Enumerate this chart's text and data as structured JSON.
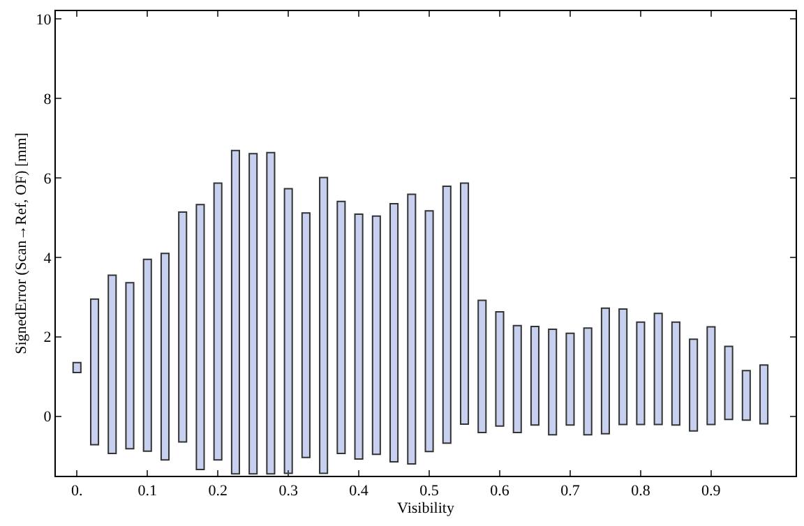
{
  "chart_data": {
    "type": "bar",
    "xlabel": "Visibility",
    "ylabel": "SignedError (Scan→Ref, OF) [mm]",
    "x": [
      0,
      0.025,
      0.05,
      0.075,
      0.1,
      0.125,
      0.15,
      0.175,
      0.2,
      0.225,
      0.25,
      0.275,
      0.3,
      0.325,
      0.35,
      0.375,
      0.4,
      0.425,
      0.45,
      0.475,
      0.5,
      0.525,
      0.55,
      0.575,
      0.6,
      0.625,
      0.65,
      0.675,
      0.7,
      0.725,
      0.75,
      0.775,
      0.8,
      0.825,
      0.85,
      0.875,
      0.9,
      0.925,
      0.95,
      0.975
    ],
    "base": [
      1.1,
      -0.72,
      -0.94,
      -0.82,
      -0.88,
      -1.1,
      -0.65,
      -1.34,
      -1.1,
      -1.45,
      -1.45,
      -1.45,
      -1.44,
      -1.04,
      -1.44,
      -0.94,
      -1.08,
      -0.96,
      -1.15,
      -1.2,
      -0.89,
      -0.68,
      -0.2,
      -0.41,
      -0.25,
      -0.41,
      -0.22,
      -0.47,
      -0.22,
      -0.47,
      -0.44,
      -0.21,
      -0.21,
      -0.21,
      -0.22,
      -0.37,
      -0.21,
      -0.08,
      -0.1,
      -0.19
    ],
    "values": [
      0.25,
      3.67,
      4.49,
      4.18,
      4.83,
      5.2,
      5.79,
      6.67,
      6.97,
      8.14,
      8.06,
      8.09,
      7.17,
      6.16,
      7.45,
      6.35,
      6.17,
      6.0,
      6.5,
      6.79,
      6.06,
      6.47,
      6.07,
      3.33,
      2.88,
      2.69,
      2.48,
      2.66,
      2.31,
      2.69,
      3.16,
      2.91,
      2.58,
      2.8,
      2.59,
      2.31,
      2.46,
      1.84,
      1.25,
      1.48
    ],
    "color": "#c8d0f0",
    "xlim": [
      -0.03,
      1.02
    ],
    "xticks": [
      {
        "value": 0,
        "label": "0."
      },
      0.1,
      0.2,
      0.3,
      0.4,
      0.5,
      0.6,
      0.7,
      0.8,
      0.9
    ],
    "ylim": [
      -1.5,
      10.2
    ],
    "yticks": [
      0,
      2,
      4,
      6,
      8,
      10
    ]
  }
}
